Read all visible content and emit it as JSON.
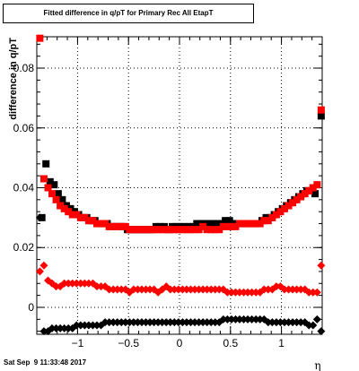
{
  "chart_data": {
    "type": "scatter",
    "title": "Fitted difference in q/pT for Primary Rec All EtapT",
    "xlabel": "η",
    "ylabel": "difference in q/pT",
    "xlim": [
      -1.4,
      1.4
    ],
    "ylim": [
      -0.009,
      0.0905
    ],
    "x_ticks": [
      -1,
      -0.5,
      0,
      0.5,
      1
    ],
    "x_tick_labels": [
      "−1",
      "−0.5",
      "0",
      "0.5",
      "1"
    ],
    "y_ticks": [
      0,
      0.02,
      0.04,
      0.06,
      0.08
    ],
    "y_tick_labels": [
      "0",
      "0.02",
      "0.04",
      "0.06",
      "0.08"
    ],
    "grid": true,
    "series": [
      {
        "marker": "square",
        "color": "#000000",
        "points": [
          [
            -1.35,
            0.03
          ],
          [
            -1.31,
            0.048
          ],
          [
            -1.27,
            0.042
          ],
          [
            -1.23,
            0.041
          ],
          [
            -1.19,
            0.038
          ],
          [
            -1.15,
            0.036
          ],
          [
            -1.11,
            0.034
          ],
          [
            -1.07,
            0.033
          ],
          [
            -1.03,
            0.032
          ],
          [
            -0.99,
            0.031
          ],
          [
            -0.95,
            0.03
          ],
          [
            -0.91,
            0.03
          ],
          [
            -0.87,
            0.029
          ],
          [
            -0.83,
            0.029
          ],
          [
            -0.79,
            0.028
          ],
          [
            -0.75,
            0.028
          ],
          [
            -0.71,
            0.028
          ],
          [
            -0.67,
            0.027
          ],
          [
            -0.63,
            0.027
          ],
          [
            -0.59,
            0.027
          ],
          [
            -0.55,
            0.027
          ],
          [
            -0.51,
            0.026
          ],
          [
            -0.47,
            0.026
          ],
          [
            -0.43,
            0.026
          ],
          [
            -0.39,
            0.026
          ],
          [
            -0.35,
            0.026
          ],
          [
            -0.31,
            0.026
          ],
          [
            -0.27,
            0.026
          ],
          [
            -0.23,
            0.027
          ],
          [
            -0.19,
            0.027
          ],
          [
            -0.15,
            0.027
          ],
          [
            -0.11,
            0.026
          ],
          [
            -0.07,
            0.027
          ],
          [
            -0.03,
            0.027
          ],
          [
            0.01,
            0.027
          ],
          [
            0.05,
            0.027
          ],
          [
            0.09,
            0.027
          ],
          [
            0.13,
            0.027
          ],
          [
            0.17,
            0.028
          ],
          [
            0.21,
            0.028
          ],
          [
            0.25,
            0.028
          ],
          [
            0.29,
            0.028
          ],
          [
            0.33,
            0.028
          ],
          [
            0.37,
            0.028
          ],
          [
            0.41,
            0.028
          ],
          [
            0.45,
            0.029
          ],
          [
            0.49,
            0.029
          ],
          [
            0.53,
            0.028
          ],
          [
            0.57,
            0.028
          ],
          [
            0.61,
            0.028
          ],
          [
            0.65,
            0.028
          ],
          [
            0.69,
            0.028
          ],
          [
            0.73,
            0.028
          ],
          [
            0.77,
            0.028
          ],
          [
            0.81,
            0.029
          ],
          [
            0.85,
            0.03
          ],
          [
            0.89,
            0.03
          ],
          [
            0.93,
            0.031
          ],
          [
            0.97,
            0.032
          ],
          [
            1.01,
            0.033
          ],
          [
            1.05,
            0.034
          ],
          [
            1.09,
            0.035
          ],
          [
            1.13,
            0.036
          ],
          [
            1.17,
            0.037
          ],
          [
            1.21,
            0.038
          ],
          [
            1.25,
            0.039
          ],
          [
            1.29,
            0.039
          ],
          [
            1.33,
            0.038
          ],
          [
            1.39,
            0.064
          ]
        ]
      },
      {
        "marker": "square",
        "color": "#ff0000",
        "points": [
          [
            -1.37,
            0.09
          ],
          [
            -1.33,
            0.043
          ],
          [
            -1.29,
            0.04
          ],
          [
            -1.25,
            0.038
          ],
          [
            -1.21,
            0.036
          ],
          [
            -1.17,
            0.034
          ],
          [
            -1.13,
            0.033
          ],
          [
            -1.09,
            0.032
          ],
          [
            -1.05,
            0.031
          ],
          [
            -1.01,
            0.031
          ],
          [
            -0.97,
            0.03
          ],
          [
            -0.93,
            0.03
          ],
          [
            -0.89,
            0.029
          ],
          [
            -0.85,
            0.029
          ],
          [
            -0.81,
            0.028
          ],
          [
            -0.77,
            0.028
          ],
          [
            -0.73,
            0.028
          ],
          [
            -0.69,
            0.027
          ],
          [
            -0.65,
            0.027
          ],
          [
            -0.61,
            0.027
          ],
          [
            -0.57,
            0.027
          ],
          [
            -0.53,
            0.027
          ],
          [
            -0.49,
            0.026
          ],
          [
            -0.45,
            0.026
          ],
          [
            -0.41,
            0.026
          ],
          [
            -0.37,
            0.026
          ],
          [
            -0.33,
            0.026
          ],
          [
            -0.29,
            0.026
          ],
          [
            -0.25,
            0.026
          ],
          [
            -0.21,
            0.026
          ],
          [
            -0.17,
            0.026
          ],
          [
            -0.13,
            0.026
          ],
          [
            -0.09,
            0.026
          ],
          [
            -0.05,
            0.026
          ],
          [
            -0.01,
            0.026
          ],
          [
            0.03,
            0.026
          ],
          [
            0.07,
            0.026
          ],
          [
            0.11,
            0.026
          ],
          [
            0.15,
            0.026
          ],
          [
            0.19,
            0.026
          ],
          [
            0.23,
            0.027
          ],
          [
            0.27,
            0.026
          ],
          [
            0.31,
            0.026
          ],
          [
            0.35,
            0.026
          ],
          [
            0.39,
            0.026
          ],
          [
            0.43,
            0.027
          ],
          [
            0.47,
            0.027
          ],
          [
            0.51,
            0.027
          ],
          [
            0.55,
            0.027
          ],
          [
            0.59,
            0.028
          ],
          [
            0.63,
            0.028
          ],
          [
            0.67,
            0.028
          ],
          [
            0.71,
            0.028
          ],
          [
            0.75,
            0.028
          ],
          [
            0.79,
            0.028
          ],
          [
            0.83,
            0.029
          ],
          [
            0.87,
            0.029
          ],
          [
            0.91,
            0.03
          ],
          [
            0.95,
            0.031
          ],
          [
            0.99,
            0.032
          ],
          [
            1.03,
            0.033
          ],
          [
            1.07,
            0.034
          ],
          [
            1.11,
            0.035
          ],
          [
            1.15,
            0.036
          ],
          [
            1.19,
            0.037
          ],
          [
            1.23,
            0.038
          ],
          [
            1.27,
            0.039
          ],
          [
            1.31,
            0.04
          ],
          [
            1.35,
            0.041
          ],
          [
            1.39,
            0.066
          ]
        ]
      },
      {
        "marker": "diamond",
        "color": "#ff0000",
        "points": [
          [
            -1.37,
            0.012
          ],
          [
            -1.33,
            0.014
          ],
          [
            -1.29,
            0.009
          ],
          [
            -1.25,
            0.008
          ],
          [
            -1.21,
            0.007
          ],
          [
            -1.17,
            0.007
          ],
          [
            -1.13,
            0.008
          ],
          [
            -1.09,
            0.008
          ],
          [
            -1.05,
            0.008
          ],
          [
            -1.01,
            0.008
          ],
          [
            -0.97,
            0.008
          ],
          [
            -0.93,
            0.008
          ],
          [
            -0.89,
            0.008
          ],
          [
            -0.85,
            0.008
          ],
          [
            -0.81,
            0.007
          ],
          [
            -0.77,
            0.007
          ],
          [
            -0.73,
            0.007
          ],
          [
            -0.69,
            0.006
          ],
          [
            -0.65,
            0.006
          ],
          [
            -0.61,
            0.006
          ],
          [
            -0.57,
            0.006
          ],
          [
            -0.53,
            0.006
          ],
          [
            -0.49,
            0.005
          ],
          [
            -0.45,
            0.006
          ],
          [
            -0.41,
            0.006
          ],
          [
            -0.37,
            0.006
          ],
          [
            -0.33,
            0.006
          ],
          [
            -0.29,
            0.006
          ],
          [
            -0.25,
            0.006
          ],
          [
            -0.21,
            0.005
          ],
          [
            -0.17,
            0.006
          ],
          [
            -0.13,
            0.007
          ],
          [
            -0.09,
            0.006
          ],
          [
            -0.05,
            0.006
          ],
          [
            -0.01,
            0.006
          ],
          [
            0.03,
            0.006
          ],
          [
            0.07,
            0.006
          ],
          [
            0.11,
            0.006
          ],
          [
            0.15,
            0.006
          ],
          [
            0.19,
            0.006
          ],
          [
            0.23,
            0.006
          ],
          [
            0.27,
            0.006
          ],
          [
            0.31,
            0.006
          ],
          [
            0.35,
            0.006
          ],
          [
            0.39,
            0.006
          ],
          [
            0.43,
            0.006
          ],
          [
            0.47,
            0.005
          ],
          [
            0.51,
            0.005
          ],
          [
            0.55,
            0.005
          ],
          [
            0.59,
            0.005
          ],
          [
            0.63,
            0.005
          ],
          [
            0.67,
            0.005
          ],
          [
            0.71,
            0.005
          ],
          [
            0.75,
            0.005
          ],
          [
            0.79,
            0.005
          ],
          [
            0.83,
            0.006
          ],
          [
            0.87,
            0.006
          ],
          [
            0.91,
            0.006
          ],
          [
            0.95,
            0.007
          ],
          [
            0.99,
            0.007
          ],
          [
            1.03,
            0.006
          ],
          [
            1.07,
            0.006
          ],
          [
            1.11,
            0.006
          ],
          [
            1.15,
            0.006
          ],
          [
            1.19,
            0.006
          ],
          [
            1.23,
            0.006
          ],
          [
            1.27,
            0.005
          ],
          [
            1.31,
            0.005
          ],
          [
            1.35,
            0.005
          ],
          [
            1.39,
            0.014
          ]
        ]
      },
      {
        "marker": "diamond",
        "color": "#000000",
        "points": [
          [
            -1.37,
            0.03
          ],
          [
            -1.33,
            -0.008
          ],
          [
            -1.29,
            -0.008
          ],
          [
            -1.25,
            -0.007
          ],
          [
            -1.21,
            -0.007
          ],
          [
            -1.17,
            -0.007
          ],
          [
            -1.13,
            -0.007
          ],
          [
            -1.09,
            -0.007
          ],
          [
            -1.05,
            -0.007
          ],
          [
            -1.01,
            -0.006
          ],
          [
            -0.97,
            -0.006
          ],
          [
            -0.93,
            -0.006
          ],
          [
            -0.89,
            -0.006
          ],
          [
            -0.85,
            -0.006
          ],
          [
            -0.81,
            -0.006
          ],
          [
            -0.77,
            -0.006
          ],
          [
            -0.73,
            -0.005
          ],
          [
            -0.69,
            -0.005
          ],
          [
            -0.65,
            -0.005
          ],
          [
            -0.61,
            -0.005
          ],
          [
            -0.57,
            -0.005
          ],
          [
            -0.53,
            -0.005
          ],
          [
            -0.49,
            -0.005
          ],
          [
            -0.45,
            -0.005
          ],
          [
            -0.41,
            -0.005
          ],
          [
            -0.37,
            -0.005
          ],
          [
            -0.33,
            -0.005
          ],
          [
            -0.29,
            -0.005
          ],
          [
            -0.25,
            -0.005
          ],
          [
            -0.21,
            -0.005
          ],
          [
            -0.17,
            -0.005
          ],
          [
            -0.13,
            -0.005
          ],
          [
            -0.09,
            -0.005
          ],
          [
            -0.05,
            -0.005
          ],
          [
            -0.01,
            -0.005
          ],
          [
            0.03,
            -0.005
          ],
          [
            0.07,
            -0.005
          ],
          [
            0.11,
            -0.005
          ],
          [
            0.15,
            -0.005
          ],
          [
            0.19,
            -0.005
          ],
          [
            0.23,
            -0.005
          ],
          [
            0.27,
            -0.005
          ],
          [
            0.31,
            -0.005
          ],
          [
            0.35,
            -0.005
          ],
          [
            0.39,
            -0.005
          ],
          [
            0.43,
            -0.004
          ],
          [
            0.47,
            -0.004
          ],
          [
            0.51,
            -0.004
          ],
          [
            0.55,
            -0.004
          ],
          [
            0.59,
            -0.004
          ],
          [
            0.63,
            -0.004
          ],
          [
            0.67,
            -0.004
          ],
          [
            0.71,
            -0.004
          ],
          [
            0.75,
            -0.004
          ],
          [
            0.79,
            -0.004
          ],
          [
            0.83,
            -0.004
          ],
          [
            0.87,
            -0.005
          ],
          [
            0.91,
            -0.005
          ],
          [
            0.95,
            -0.005
          ],
          [
            0.99,
            -0.005
          ],
          [
            1.03,
            -0.005
          ],
          [
            1.07,
            -0.005
          ],
          [
            1.11,
            -0.005
          ],
          [
            1.15,
            -0.005
          ],
          [
            1.19,
            -0.005
          ],
          [
            1.23,
            -0.005
          ],
          [
            1.27,
            -0.006
          ],
          [
            1.31,
            -0.006
          ],
          [
            1.35,
            -0.004
          ],
          [
            1.39,
            -0.008
          ]
        ]
      }
    ]
  },
  "footer": {
    "timestamp": "Sat Sep  9 11:33:48 2017"
  }
}
